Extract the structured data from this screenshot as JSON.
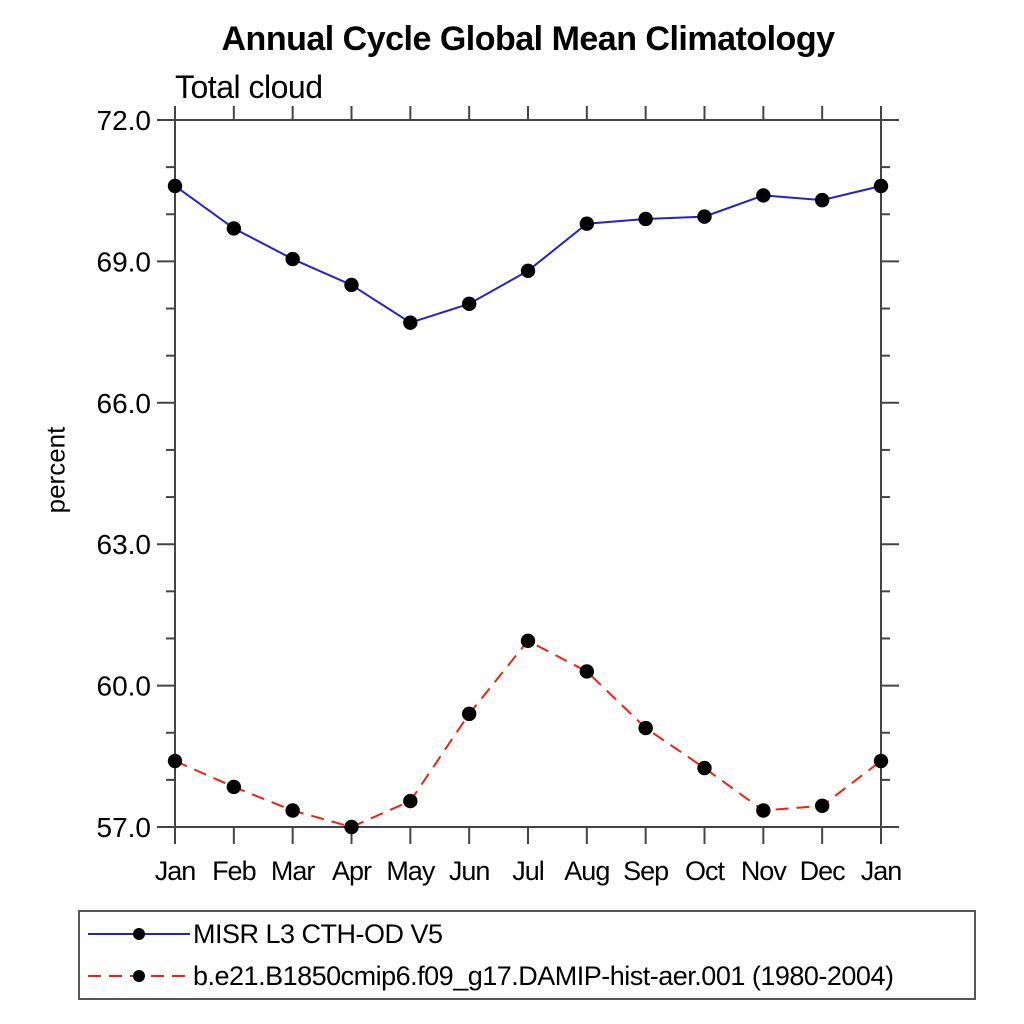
{
  "header": {
    "title": "Annual Cycle Global Mean Climatology",
    "subtitle": "Total cloud"
  },
  "colors": {
    "series1_blue": "#2222cc",
    "series2_red": "#ee2211",
    "marker_black": "#000000",
    "axis": "#444444",
    "text": "#000000",
    "background": "#ffffff",
    "legend_border": "#555555"
  },
  "legend": {
    "items": [
      {
        "label": "MISR L3 CTH-OD V5",
        "color": "#2222cc",
        "line_style": "solid",
        "marker": "filled-circle"
      },
      {
        "label": "b.e21.B1850cmip6.f09_g17.DAMIP-hist-aer.001 (1980-2004)",
        "color": "#ee2211",
        "line_style": "dashed",
        "marker": "filled-circle"
      }
    ]
  },
  "chart_data": {
    "type": "line",
    "title": "Annual Cycle Global Mean Climatology",
    "subtitle": "Total cloud",
    "xlabel": "",
    "ylabel": "percent",
    "categories": [
      "Jan",
      "Feb",
      "Mar",
      "Apr",
      "May",
      "Jun",
      "Jul",
      "Aug",
      "Sep",
      "Oct",
      "Nov",
      "Dec",
      "Jan"
    ],
    "series": [
      {
        "name": "MISR L3 CTH-OD V5",
        "color": "#2222cc",
        "line_style": "solid",
        "marker": "filled-circle",
        "values": [
          70.6,
          69.7,
          69.05,
          68.5,
          67.7,
          68.1,
          68.8,
          69.8,
          69.9,
          69.95,
          70.4,
          70.3,
          70.6
        ]
      },
      {
        "name": "b.e21.B1850cmip6.f09_g17.DAMIP-hist-aer.001 (1980-2004)",
        "color": "#ee2211",
        "line_style": "dashed",
        "marker": "filled-circle",
        "values": [
          58.4,
          57.85,
          57.35,
          57.0,
          57.55,
          59.4,
          60.95,
          60.3,
          59.1,
          58.25,
          57.35,
          57.45,
          58.4
        ]
      }
    ],
    "ylim": [
      57.0,
      72.0
    ],
    "ytick_major": [
      57.0,
      60.0,
      63.0,
      66.0,
      69.0,
      72.0
    ],
    "ytick_major_labels": [
      "57.0",
      "60.0",
      "63.0",
      "66.0",
      "69.0",
      "72.0"
    ],
    "ytick_minor_step": 1.0,
    "grid": false,
    "legend_position": "bottom-left-box"
  }
}
